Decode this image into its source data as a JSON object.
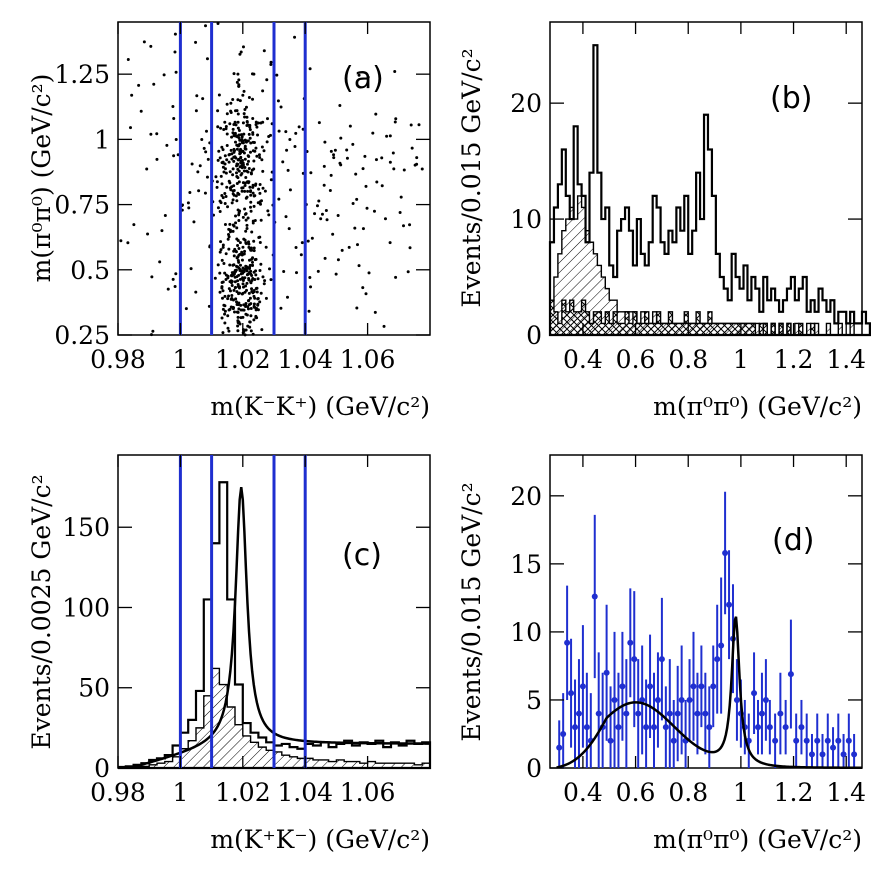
{
  "colors": {
    "accent": "#1f2fd0",
    "ink": "#000000",
    "background": "#ffffff"
  },
  "chart_data": [
    {
      "panel": "(a)",
      "type": "scatter",
      "xlabel": "m(K⁻K⁺) (GeV/c²)",
      "ylabel": "m(π⁰π⁰) (GeV/c²)",
      "xlim": [
        0.98,
        1.08
      ],
      "ylim": [
        0.25,
        1.45
      ],
      "xticks": [
        0.98,
        1.0,
        1.02,
        1.04,
        1.06
      ],
      "xtick_labels": [
        "0.98",
        "1",
        "1.02",
        "1.04",
        "1.06"
      ],
      "yticks": [
        0.25,
        0.5,
        0.75,
        1.0,
        1.25
      ],
      "ytick_labels": [
        "0.25",
        "0.5",
        "0.75",
        "1",
        "1.25"
      ],
      "vlines": [
        1.0,
        1.01,
        1.03,
        1.04
      ],
      "clusters": [
        {
          "x": 1.0195,
          "y": 0.95,
          "sx": 0.0035,
          "sy": 0.12,
          "n": 190
        },
        {
          "x": 1.0195,
          "y": 0.42,
          "sx": 0.0035,
          "sy": 0.1,
          "n": 220
        },
        {
          "x": 1.0195,
          "y": 0.7,
          "sx": 0.004,
          "sy": 0.25,
          "n": 120
        },
        {
          "x": 1.032,
          "y": 0.85,
          "sx": 0.028,
          "sy": 0.3,
          "n": 260
        },
        {
          "x": 1.005,
          "y": 0.8,
          "sx": 0.012,
          "sy": 0.35,
          "n": 40
        }
      ]
    },
    {
      "panel": "(b)",
      "type": "histogram",
      "xlabel": "m(π⁰π⁰) (GeV/c²)",
      "ylabel": "Events/0.015 GeV/c²",
      "xlim": [
        0.275,
        1.46
      ],
      "ylim": [
        0,
        27
      ],
      "bin_start": 0.275,
      "bin_width": 0.015,
      "xticks": [
        0.4,
        0.6,
        0.8,
        1.0,
        1.2,
        1.4
      ],
      "xtick_labels": [
        "0.4",
        "0.6",
        "0.8",
        "1",
        "1.2",
        "1.4"
      ],
      "yticks": [
        0,
        10,
        20
      ],
      "ytick_labels": [
        "0",
        "10",
        "20"
      ],
      "series": [
        {
          "style": "open",
          "values": [
            8,
            11,
            13,
            16,
            12,
            10,
            18,
            13,
            12,
            8,
            14,
            25,
            14,
            10,
            11,
            6,
            5,
            9,
            10,
            11,
            9,
            6,
            10,
            7,
            6,
            8,
            12,
            11,
            8,
            7,
            9,
            8,
            11,
            9,
            12,
            7,
            9,
            14,
            10,
            19,
            16,
            12,
            7,
            5,
            4,
            3,
            7,
            5,
            4,
            6,
            3,
            5,
            4,
            2,
            5,
            3,
            4,
            3,
            2,
            3,
            4,
            5,
            3,
            4,
            5,
            2,
            3,
            2,
            4,
            3,
            2,
            3,
            1,
            2,
            2,
            1,
            2,
            1,
            1,
            2,
            1
          ]
        },
        {
          "style": "hatched",
          "values": [
            3,
            5,
            7,
            9,
            10,
            11,
            10,
            12,
            11,
            9,
            8,
            7,
            6,
            5,
            4,
            3,
            3,
            2,
            2,
            2,
            2,
            2,
            1,
            2,
            1,
            1,
            2,
            1,
            1,
            1,
            1,
            1,
            1,
            1,
            1,
            1,
            1,
            1,
            1,
            1,
            1,
            1,
            1,
            1,
            1,
            1,
            1,
            1,
            1,
            1,
            1,
            1,
            1,
            0,
            1,
            0,
            1,
            0,
            1,
            0,
            1,
            0,
            1,
            0,
            0,
            1,
            0,
            1,
            0,
            0,
            1,
            0,
            0,
            1,
            0,
            0,
            1,
            0,
            0,
            0,
            0
          ]
        },
        {
          "style": "cross-hatched",
          "values": [
            3,
            2,
            1,
            3,
            2,
            3,
            2,
            2,
            3,
            2,
            1,
            2,
            2,
            1,
            2,
            1,
            2,
            1,
            1,
            2,
            1,
            2,
            1,
            1,
            2,
            1,
            1,
            2,
            1,
            1,
            2,
            1,
            1,
            1,
            2,
            1,
            1,
            2,
            1,
            1,
            2,
            1,
            1,
            1,
            1,
            1,
            1,
            1,
            1,
            1,
            1,
            1,
            0,
            1,
            1,
            0,
            1,
            0,
            1,
            0,
            1,
            0,
            0,
            1,
            0,
            0,
            1,
            0,
            0,
            0,
            0,
            0,
            0,
            0,
            0,
            0,
            0,
            0,
            0,
            0,
            0
          ]
        }
      ]
    },
    {
      "panel": "(c)",
      "type": "histogram",
      "xlabel": "m(K⁺K⁻) (GeV/c²)",
      "ylabel": "Events/0.0025 GeV/c²",
      "xlim": [
        0.98,
        1.08
      ],
      "ylim": [
        0,
        195
      ],
      "bin_start": 0.98,
      "bin_width": 0.0025,
      "xticks": [
        0.98,
        1.0,
        1.02,
        1.04,
        1.06
      ],
      "xtick_labels": [
        "0.98",
        "1",
        "1.02",
        "1.04",
        "1.06"
      ],
      "yticks": [
        0,
        50,
        100,
        150
      ],
      "ytick_labels": [
        "0",
        "50",
        "100",
        "150"
      ],
      "vlines": [
        1.0,
        1.01,
        1.03,
        1.04
      ],
      "series": [
        {
          "style": "open",
          "values": [
            0,
            1,
            2,
            3,
            5,
            6,
            8,
            14,
            22,
            30,
            48,
            105,
            140,
            178,
            105,
            52,
            28,
            22,
            19,
            16,
            14,
            15,
            13,
            12,
            15,
            14,
            16,
            13,
            15,
            17,
            14,
            16,
            15,
            17,
            13,
            16,
            14,
            17,
            15,
            16
          ]
        },
        {
          "style": "hatched",
          "values": [
            0,
            0,
            1,
            1,
            2,
            3,
            4,
            7,
            12,
            17,
            25,
            45,
            62,
            52,
            38,
            27,
            20,
            16,
            13,
            11,
            10,
            8,
            7,
            6,
            6,
            5,
            5,
            4,
            5,
            4,
            4,
            3,
            4,
            3,
            3,
            3,
            3,
            3,
            2,
            3
          ]
        }
      ],
      "fit_curve": {
        "peak": 1.0195,
        "width": 0.0022,
        "amplitude": 160,
        "background": 15
      }
    },
    {
      "panel": "(d)",
      "type": "scatter-errorbar",
      "xlabel": "m(π⁰π⁰) (GeV/c²)",
      "ylabel": "Events/0.015 GeV/c²",
      "xlim": [
        0.275,
        1.46
      ],
      "ylim": [
        0,
        23
      ],
      "xticks": [
        0.4,
        0.6,
        0.8,
        1.0,
        1.2,
        1.4
      ],
      "xtick_labels": [
        "0.4",
        "0.6",
        "0.8",
        "1",
        "1.2",
        "1.4"
      ],
      "yticks": [
        0,
        5,
        10,
        15,
        20
      ],
      "ytick_labels": [
        "0",
        "5",
        "10",
        "15",
        "20"
      ],
      "points": [
        [
          0.31,
          1.5,
          2
        ],
        [
          0.325,
          2.5,
          3
        ],
        [
          0.34,
          9.2,
          4.2
        ],
        [
          0.355,
          5.5,
          4
        ],
        [
          0.37,
          3,
          3.5
        ],
        [
          0.385,
          4,
          4
        ],
        [
          0.4,
          6,
          4.5
        ],
        [
          0.415,
          3,
          4
        ],
        [
          0.43,
          2,
          3.5
        ],
        [
          0.445,
          12.6,
          6
        ],
        [
          0.46,
          4,
          4.5
        ],
        [
          0.475,
          3,
          4
        ],
        [
          0.49,
          7,
          5
        ],
        [
          0.505,
          2,
          4
        ],
        [
          0.52,
          5,
          5
        ],
        [
          0.535,
          3,
          4
        ],
        [
          0.55,
          6,
          4
        ],
        [
          0.565,
          4,
          4
        ],
        [
          0.58,
          9.2,
          4
        ],
        [
          0.595,
          8,
          5
        ],
        [
          0.61,
          4,
          4
        ],
        [
          0.625,
          5,
          4
        ],
        [
          0.64,
          3,
          3.5
        ],
        [
          0.655,
          6,
          3.8
        ],
        [
          0.67,
          3,
          4
        ],
        [
          0.685,
          5,
          3.5
        ],
        [
          0.7,
          8,
          4.5
        ],
        [
          0.715,
          3,
          3
        ],
        [
          0.73,
          4,
          4
        ],
        [
          0.745,
          2,
          3
        ],
        [
          0.76,
          4,
          3.5
        ],
        [
          0.775,
          5,
          4
        ],
        [
          0.79,
          2,
          3
        ],
        [
          0.805,
          5,
          3
        ],
        [
          0.82,
          6,
          4
        ],
        [
          0.835,
          4,
          3
        ],
        [
          0.85,
          6,
          3
        ],
        [
          0.865,
          4,
          3
        ],
        [
          0.88,
          3,
          3
        ],
        [
          0.895,
          6,
          3
        ],
        [
          0.91,
          8,
          4
        ],
        [
          0.925,
          9,
          5
        ],
        [
          0.94,
          15.8,
          4.5
        ],
        [
          0.955,
          12,
          4
        ],
        [
          0.97,
          9.5,
          4
        ],
        [
          0.985,
          5,
          3
        ],
        [
          1.0,
          4,
          2.5
        ],
        [
          1.015,
          3,
          2
        ],
        [
          1.03,
          2,
          2
        ],
        [
          1.05,
          5.5,
          3
        ],
        [
          1.065,
          3,
          2
        ],
        [
          1.08,
          4,
          3
        ],
        [
          1.095,
          5,
          3
        ],
        [
          1.11,
          3,
          2
        ],
        [
          1.13,
          2,
          2
        ],
        [
          1.15,
          4,
          3
        ],
        [
          1.17,
          3,
          2
        ],
        [
          1.19,
          6.9,
          4
        ],
        [
          1.21,
          2,
          2
        ],
        [
          1.23,
          3,
          2
        ],
        [
          1.25,
          2,
          2
        ],
        [
          1.27,
          1,
          1.5
        ],
        [
          1.29,
          2,
          2
        ],
        [
          1.31,
          1,
          1.5
        ],
        [
          1.33,
          2,
          2
        ],
        [
          1.35,
          1.5,
          1.5
        ],
        [
          1.37,
          2,
          2
        ],
        [
          1.39,
          1,
          1.5
        ],
        [
          1.41,
          2,
          2
        ],
        [
          1.43,
          1,
          1.5
        ]
      ],
      "fit_curve": {
        "broad_peak": 0.6,
        "broad_width": 0.15,
        "broad_amplitude": 4.8,
        "narrow_peak": 0.98,
        "narrow_width": 0.018,
        "narrow_amplitude": 11
      }
    }
  ]
}
